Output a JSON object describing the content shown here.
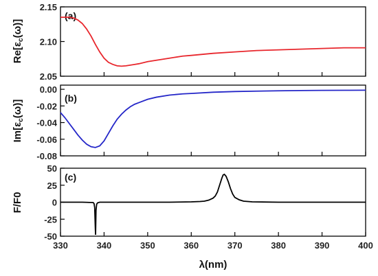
{
  "chart_data": [
    {
      "type": "line",
      "panel_label": "(a)",
      "ylabel": "Re[εc(ω)]",
      "ylabel_parts": {
        "main": "Re[ε",
        "sub": "c",
        "post": "(ω)]"
      },
      "xlim": [
        330,
        400
      ],
      "ylim": [
        2.05,
        2.15
      ],
      "yticks": [
        2.05,
        2.1,
        2.15
      ],
      "ytick_labels": [
        "2.05",
        "2.10",
        "2.15"
      ],
      "xticks": [
        330,
        340,
        350,
        360,
        370,
        380,
        390,
        400
      ],
      "show_x_tick_labels": false,
      "series": [
        {
          "color": "#e8262c",
          "x": [
            330,
            331,
            332,
            333,
            334,
            335,
            336,
            337,
            338,
            339,
            340,
            341,
            342,
            343,
            344,
            345,
            346,
            347,
            348,
            350,
            352,
            355,
            358,
            360,
            365,
            370,
            375,
            380,
            385,
            390,
            395,
            400
          ],
          "y": [
            2.135,
            2.135,
            2.135,
            2.134,
            2.131,
            2.126,
            2.118,
            2.108,
            2.096,
            2.085,
            2.076,
            2.07,
            2.067,
            2.065,
            2.0645,
            2.065,
            2.066,
            2.067,
            2.068,
            2.071,
            2.073,
            2.076,
            2.079,
            2.08,
            2.083,
            2.085,
            2.087,
            2.088,
            2.089,
            2.09,
            2.091,
            2.091
          ]
        }
      ]
    },
    {
      "type": "line",
      "panel_label": "(b)",
      "ylabel": "Im[εc(ω)]",
      "ylabel_parts": {
        "main": "Im[ε",
        "sub": "c",
        "post": "(ω)]"
      },
      "xlim": [
        330,
        400
      ],
      "ylim": [
        -0.08,
        0.005
      ],
      "yticks": [
        -0.08,
        -0.06,
        -0.04,
        -0.02,
        0.0
      ],
      "ytick_labels": [
        "-0.08",
        "-0.06",
        "-0.04",
        "-0.02",
        "0.00"
      ],
      "xticks": [
        330,
        340,
        350,
        360,
        370,
        380,
        390,
        400
      ],
      "show_x_tick_labels": false,
      "series": [
        {
          "color": "#2426c8",
          "x": [
            330,
            331,
            332,
            333,
            334,
            335,
            336,
            337,
            338,
            339,
            340,
            341,
            342,
            343,
            344,
            345,
            346,
            347,
            348,
            350,
            352,
            355,
            358,
            360,
            365,
            370,
            375,
            380,
            385,
            390,
            395,
            400
          ],
          "y": [
            -0.028,
            -0.034,
            -0.041,
            -0.048,
            -0.055,
            -0.061,
            -0.066,
            -0.069,
            -0.07,
            -0.068,
            -0.062,
            -0.053,
            -0.044,
            -0.036,
            -0.03,
            -0.025,
            -0.021,
            -0.018,
            -0.016,
            -0.012,
            -0.0095,
            -0.007,
            -0.0055,
            -0.005,
            -0.0035,
            -0.0027,
            -0.0022,
            -0.0018,
            -0.0015,
            -0.0013,
            -0.0012,
            -0.0011
          ]
        }
      ]
    },
    {
      "type": "line",
      "panel_label": "(c)",
      "ylabel": "F/F0",
      "xlabel": "λ(nm)",
      "xlim": [
        330,
        400
      ],
      "ylim": [
        -50,
        50
      ],
      "yticks": [
        -50,
        -25,
        0,
        25,
        50
      ],
      "ytick_labels": [
        "-50",
        "-25",
        "0",
        "25",
        "50"
      ],
      "xticks": [
        330,
        340,
        350,
        360,
        370,
        380,
        390,
        400
      ],
      "xtick_labels": [
        "330",
        "340",
        "350",
        "360",
        "370",
        "380",
        "390",
        "400"
      ],
      "show_x_tick_labels": true,
      "series": [
        {
          "color": "#000000",
          "x": [
            330,
            335,
            337.5,
            337.7,
            337.85,
            338.0,
            338.05,
            338.15,
            338.3,
            338.5,
            339,
            345,
            355,
            360,
            362,
            363,
            364,
            365,
            365.5,
            366,
            366.5,
            367,
            367.3,
            367.6,
            368,
            368.5,
            369,
            369.5,
            370,
            371,
            372,
            374,
            380,
            400
          ],
          "y": [
            0,
            0,
            -0.5,
            -2,
            -8,
            -40,
            -48,
            -12,
            -3,
            -1,
            0,
            0,
            0,
            0.5,
            1,
            1.5,
            3,
            6,
            9,
            15,
            25,
            35,
            40,
            41,
            38,
            30,
            20,
            12,
            7,
            3.5,
            1.5,
            0.5,
            0,
            0
          ]
        }
      ]
    }
  ]
}
